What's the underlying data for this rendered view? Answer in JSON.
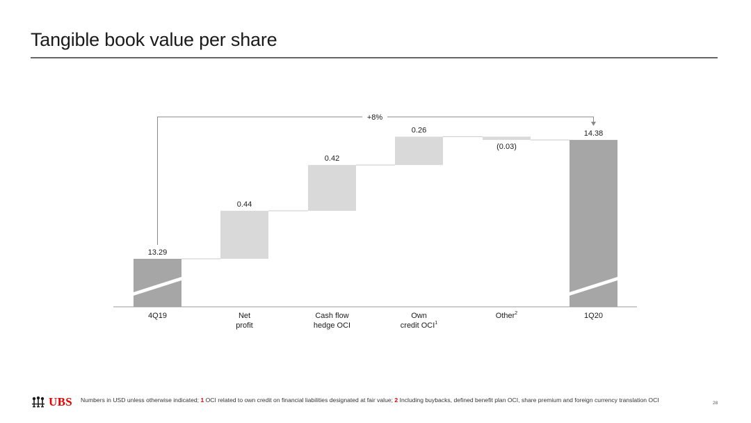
{
  "page": {
    "title": "Tangible book value per share",
    "page_number": "28"
  },
  "footer": {
    "logo_text": "UBS",
    "footnote_intro": "Numbers in USD unless otherwise indicated; ",
    "fn1_num": "1",
    "fn1_text": " OCI related to own credit on financial liabilities designated at fair value; ",
    "fn2_num": "2",
    "fn2_text": " Including buybacks, defined benefit plan OCI, share premium and foreign currency translation OCI"
  },
  "colors": {
    "total_bar": "#a6a6a6",
    "delta_bar": "#d9d9d9",
    "axis": "#999999",
    "text": "#1a1a1a",
    "accent": "#e60000"
  },
  "chart_data": {
    "type": "bar",
    "subtype": "waterfall",
    "title": "Tangible book value per share",
    "categories": [
      {
        "label": "4Q19",
        "sup": ""
      },
      {
        "label": "Net\nprofit",
        "sup": ""
      },
      {
        "label": "Cash flow\nhedge OCI",
        "sup": ""
      },
      {
        "label": "Own\ncredit OCI",
        "sup": "1"
      },
      {
        "label": "Other",
        "sup": "2"
      },
      {
        "label": "1Q20",
        "sup": ""
      }
    ],
    "values": [
      13.29,
      0.44,
      0.42,
      0.26,
      -0.03,
      14.38
    ],
    "value_labels": [
      "13.29",
      "0.44",
      "0.42",
      "0.26",
      "(0.03)",
      "14.38"
    ],
    "kinds": [
      "total",
      "delta",
      "delta",
      "delta",
      "delta",
      "total"
    ],
    "axis_break_on_totals": true,
    "change_annotation": {
      "text": "+8%",
      "from_category": "4Q19",
      "to_category": "1Q20"
    },
    "legend": "none",
    "grid": false
  }
}
